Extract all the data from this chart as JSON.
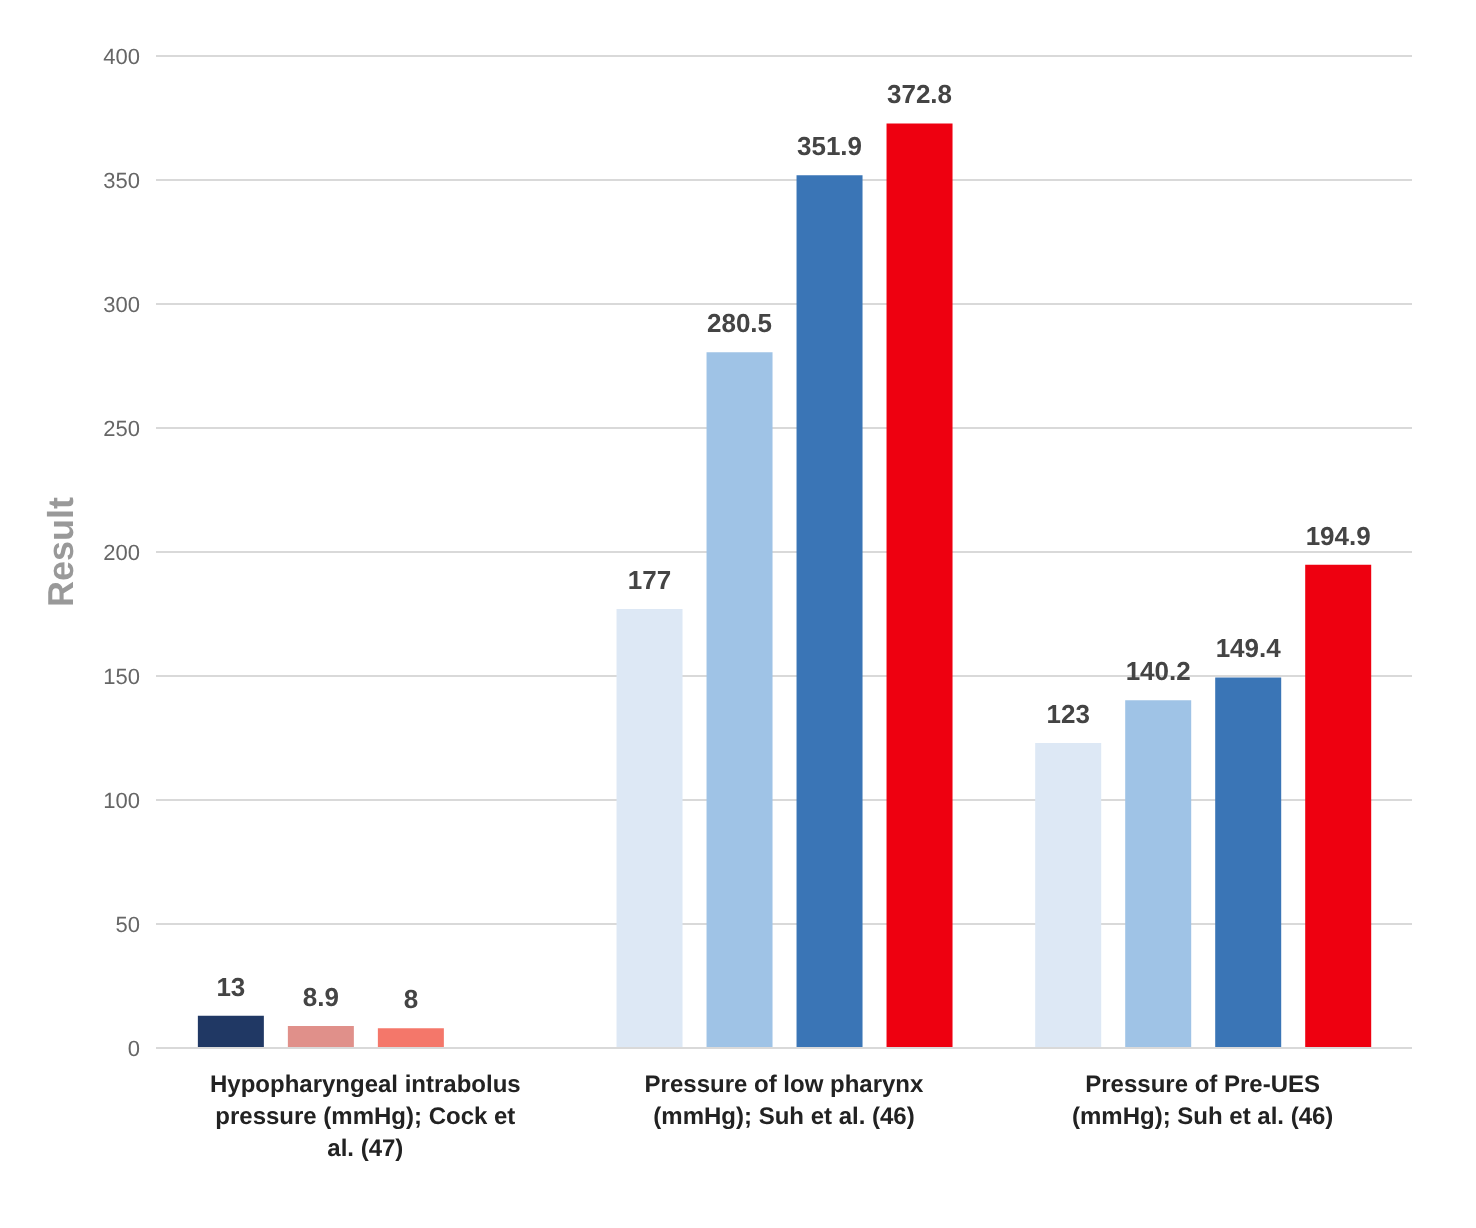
{
  "chart_data": {
    "type": "bar",
    "ylabel": "Result",
    "categories": [
      "Hypopharyngeal intrabolus pressure (mmHg); Cock et al. (47)",
      "Pressure of low pharynx (mmHg); Suh et al. (46)",
      "Pressure of Pre-UES (mmHg); Suh et al. (46)"
    ],
    "series": [
      {
        "values": [
          13,
          177,
          123
        ],
        "colors": [
          "#203864",
          "#dde8f5",
          "#dde8f5"
        ]
      },
      {
        "values": [
          8.9,
          280.5,
          140.2
        ],
        "colors": [
          "#e0908a",
          "#9fc3e6",
          "#9fc3e6"
        ]
      },
      {
        "values": [
          8,
          351.9,
          149.4
        ],
        "colors": [
          "#f4776a",
          "#3a75b6",
          "#3a75b6"
        ]
      },
      {
        "values": [
          null,
          372.8,
          194.9
        ],
        "colors": [
          "#ee0010",
          "#ee0010",
          "#ee0010"
        ]
      }
    ],
    "ylim": [
      0,
      400
    ],
    "yticks": [
      0,
      50,
      100,
      150,
      200,
      250,
      300,
      350,
      400
    ],
    "grid": "y",
    "data_labels": true
  }
}
